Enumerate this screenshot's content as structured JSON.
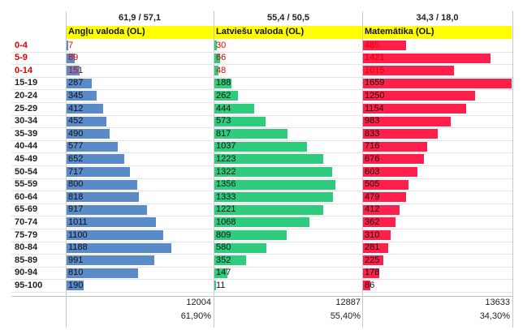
{
  "sheet": {
    "headers": [
      "61,9 / 57,1",
      "55,4 / 50,5",
      "34,3 / 18,0"
    ],
    "totals": [
      "12004",
      "12887",
      "13633"
    ],
    "percents": [
      "61,90%",
      "55,40%",
      "34,30%"
    ]
  },
  "colors": {
    "Angļu valoda (OL)": "#5b8ac9",
    "Latviešu valoda (OL)": "#2ecc7c",
    "Matemātika (OL)": "#ff1f4b",
    "header_fill": "#ffff00",
    "highlight_text": "#e00000"
  },
  "chart_data": {
    "type": "bar",
    "orientation": "horizontal",
    "categories": [
      "0-4",
      "5-9",
      "0-14",
      "15-19",
      "20-24",
      "25-29",
      "30-34",
      "35-39",
      "40-44",
      "45-49",
      "50-54",
      "55-59",
      "60-64",
      "65-69",
      "70-74",
      "75-79",
      "80-84",
      "85-89",
      "90-94",
      "95-100"
    ],
    "highlighted_categories": [
      "0-4",
      "5-9",
      "0-14"
    ],
    "series": [
      {
        "name": "Angļu valoda (OL)",
        "values": [
          7,
          89,
          151,
          287,
          345,
          412,
          452,
          490,
          577,
          652,
          717,
          800,
          818,
          917,
          1011,
          1100,
          1188,
          991,
          810,
          190
        ]
      },
      {
        "name": "Latviešu valoda (OL)",
        "values": [
          30,
          66,
          48,
          188,
          262,
          444,
          573,
          817,
          1037,
          1223,
          1322,
          1356,
          1333,
          1221,
          1068,
          809,
          580,
          352,
          147,
          11
        ]
      },
      {
        "name": "Matemātika (OL)",
        "values": [
          485,
          1421,
          1015,
          1659,
          1250,
          1154,
          983,
          833,
          716,
          676,
          603,
          505,
          479,
          412,
          362,
          310,
          281,
          225,
          178,
          86
        ]
      }
    ]
  }
}
